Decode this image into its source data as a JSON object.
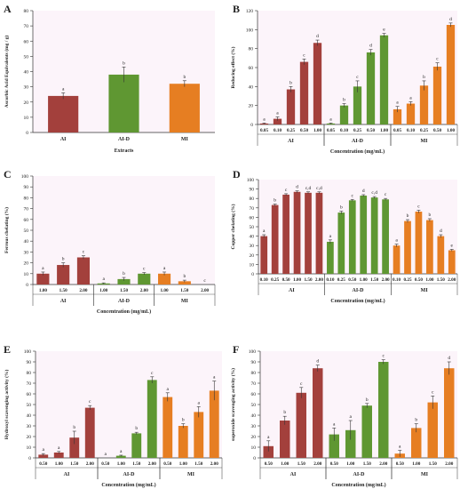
{
  "colors": {
    "AI": "#a3403c",
    "AI-D": "#5f9732",
    "MI": "#e67e22",
    "background_tint": "#f6dff0",
    "axis": "#333333"
  },
  "chart_data": [
    {
      "panel": "A",
      "type": "bar",
      "ylabel": "Ascorbic Acid Equivalents (mg / g)",
      "xlabel": "Extracts",
      "ylim": [
        0,
        80
      ],
      "yticks": [
        0,
        10,
        20,
        30,
        40,
        50,
        60,
        70,
        80
      ],
      "groups": [
        {
          "name": "AI",
          "bars": [
            {
              "x": "AI",
              "y": 24,
              "err": 2,
              "letter": "a"
            }
          ]
        },
        {
          "name": "AI-D",
          "bars": [
            {
              "x": "AI-D",
              "y": 38,
              "err": 5,
              "letter": "b"
            }
          ]
        },
        {
          "name": "MI",
          "bars": [
            {
              "x": "MI",
              "y": 32,
              "err": 2,
              "letter": "b"
            }
          ]
        }
      ]
    },
    {
      "panel": "B",
      "type": "bar",
      "ylabel": "Reducing effect (%)",
      "xlabel": "Concentration (mg/mL)",
      "ylim": [
        0,
        120
      ],
      "yticks": [
        0,
        20,
        40,
        60,
        80,
        100,
        120
      ],
      "groups": [
        {
          "name": "AI",
          "bars": [
            {
              "x": "0.05",
              "y": 1,
              "err": 0.5,
              "letter": "a"
            },
            {
              "x": "0.10",
              "y": 6,
              "err": 2,
              "letter": "a"
            },
            {
              "x": "0.25",
              "y": 37,
              "err": 3,
              "letter": "b"
            },
            {
              "x": "0.50",
              "y": 66,
              "err": 3,
              "letter": "c"
            },
            {
              "x": "1.00",
              "y": 86,
              "err": 3,
              "letter": "d"
            }
          ]
        },
        {
          "name": "AI-D",
          "bars": [
            {
              "x": "0.05",
              "y": 1,
              "err": 0.5,
              "letter": "a"
            },
            {
              "x": "0.10",
              "y": 20,
              "err": 2,
              "letter": "b"
            },
            {
              "x": "0.25",
              "y": 40,
              "err": 6,
              "letter": "c"
            },
            {
              "x": "0.50",
              "y": 76,
              "err": 3,
              "letter": "d"
            },
            {
              "x": "1.00",
              "y": 94,
              "err": 2,
              "letter": "e"
            }
          ]
        },
        {
          "name": "MI",
          "bars": [
            {
              "x": "0.05",
              "y": 16,
              "err": 3,
              "letter": "a"
            },
            {
              "x": "0.10",
              "y": 22,
              "err": 2,
              "letter": "a"
            },
            {
              "x": "0.25",
              "y": 41,
              "err": 5,
              "letter": "b"
            },
            {
              "x": "0.50",
              "y": 61,
              "err": 4,
              "letter": "c"
            },
            {
              "x": "1.00",
              "y": 105,
              "err": 2,
              "letter": "d"
            }
          ]
        }
      ]
    },
    {
      "panel": "C",
      "type": "bar",
      "ylabel": "Ferrous chelating (%)",
      "xlabel": "Concentration (mg/mL)",
      "ylim": [
        0,
        100
      ],
      "yticks": [
        0,
        10,
        20,
        30,
        40,
        50,
        60,
        70,
        80,
        90,
        100
      ],
      "groups": [
        {
          "name": "AI",
          "bars": [
            {
              "x": "1.00",
              "y": 10,
              "err": 1.5,
              "letter": "a"
            },
            {
              "x": "1.50",
              "y": 18,
              "err": 2,
              "letter": "b"
            },
            {
              "x": "2.00",
              "y": 25,
              "err": 1.5,
              "letter": "c"
            }
          ]
        },
        {
          "name": "AI-D",
          "bars": [
            {
              "x": "1.00",
              "y": 1,
              "err": 0.5,
              "letter": "a"
            },
            {
              "x": "1.50",
              "y": 5,
              "err": 1.5,
              "letter": "b"
            },
            {
              "x": "2.00",
              "y": 10,
              "err": 1,
              "letter": "c"
            }
          ]
        },
        {
          "name": "MI",
          "bars": [
            {
              "x": "1.00",
              "y": 10,
              "err": 1.5,
              "letter": "a"
            },
            {
              "x": "1.50",
              "y": 3,
              "err": 1,
              "letter": "b"
            },
            {
              "x": "2.00",
              "y": 0,
              "err": 0,
              "letter": "c"
            }
          ]
        }
      ]
    },
    {
      "panel": "D",
      "type": "bar",
      "ylabel": "Copper chelating (%)",
      "xlabel": "Concentration (mg/mL)",
      "ylim": [
        0,
        100
      ],
      "yticks": [
        0,
        10,
        20,
        30,
        40,
        50,
        60,
        70,
        80,
        90,
        100
      ],
      "groups": [
        {
          "name": "AI",
          "bars": [
            {
              "x": "0.10",
              "y": 40,
              "err": 1.5,
              "letter": "a"
            },
            {
              "x": "0.25",
              "y": 73,
              "err": 1,
              "letter": "b"
            },
            {
              "x": "0.50",
              "y": 84,
              "err": 1,
              "letter": "c"
            },
            {
              "x": "1.00",
              "y": 87,
              "err": 1,
              "letter": "d"
            },
            {
              "x": "1.50",
              "y": 86,
              "err": 1,
              "letter": "c,d"
            },
            {
              "x": "2.00",
              "y": 86,
              "err": 1,
              "letter": "c,d"
            }
          ]
        },
        {
          "name": "AI-D",
          "bars": [
            {
              "x": "0.10",
              "y": 34,
              "err": 2,
              "letter": "a"
            },
            {
              "x": "0.25",
              "y": 65,
              "err": 1.5,
              "letter": "b"
            },
            {
              "x": "0.50",
              "y": 78,
              "err": 1,
              "letter": "c"
            },
            {
              "x": "1.00",
              "y": 83,
              "err": 1,
              "letter": "d"
            },
            {
              "x": "1.50",
              "y": 81,
              "err": 1,
              "letter": "c,d"
            },
            {
              "x": "2.00",
              "y": 79,
              "err": 1,
              "letter": "c"
            }
          ]
        },
        {
          "name": "MI",
          "bars": [
            {
              "x": "0.10",
              "y": 30,
              "err": 1.5,
              "letter": "a"
            },
            {
              "x": "0.25",
              "y": 56,
              "err": 1.5,
              "letter": "b"
            },
            {
              "x": "0.50",
              "y": 66,
              "err": 1.5,
              "letter": "c"
            },
            {
              "x": "1.00",
              "y": 57,
              "err": 1.5,
              "letter": "b"
            },
            {
              "x": "1.50",
              "y": 40,
              "err": 1.5,
              "letter": "d"
            },
            {
              "x": "2.00",
              "y": 25,
              "err": 1,
              "letter": "e"
            }
          ]
        }
      ]
    },
    {
      "panel": "E",
      "type": "bar",
      "ylabel": "Hydroxyl scavenging activity (%)",
      "xlabel": "Concentration (mg/mL)",
      "ylim": [
        0,
        100
      ],
      "yticks": [
        0,
        10,
        20,
        30,
        40,
        50,
        60,
        70,
        80,
        90,
        100
      ],
      "groups": [
        {
          "name": "AI",
          "bars": [
            {
              "x": "0.50",
              "y": 3,
              "err": 1,
              "letter": "a"
            },
            {
              "x": "1.00",
              "y": 5,
              "err": 1,
              "letter": "a"
            },
            {
              "x": "1.50",
              "y": 19,
              "err": 6,
              "letter": "b"
            },
            {
              "x": "2.00",
              "y": 47,
              "err": 2,
              "letter": "c"
            }
          ]
        },
        {
          "name": "AI-D",
          "bars": [
            {
              "x": "0.50",
              "y": 0,
              "err": 0,
              "letter": "a"
            },
            {
              "x": "1.00",
              "y": 2,
              "err": 0.5,
              "letter": "a"
            },
            {
              "x": "1.50",
              "y": 23,
              "err": 1,
              "letter": "b"
            },
            {
              "x": "2.00",
              "y": 73,
              "err": 3,
              "letter": "c"
            }
          ]
        },
        {
          "name": "MI",
          "bars": [
            {
              "x": "0.50",
              "y": 57,
              "err": 4,
              "letter": "a"
            },
            {
              "x": "1.00",
              "y": 30,
              "err": 2,
              "letter": "b"
            },
            {
              "x": "1.50",
              "y": 43,
              "err": 5,
              "letter": "a"
            },
            {
              "x": "2.00",
              "y": 63,
              "err": 9,
              "letter": "a"
            }
          ]
        }
      ]
    },
    {
      "panel": "F",
      "type": "bar",
      "ylabel": "superoxide scavenging activity (%)",
      "xlabel": "Concentration (mg/mL)",
      "ylim": [
        0,
        100
      ],
      "yticks": [
        0,
        10,
        20,
        30,
        40,
        50,
        60,
        70,
        80,
        90,
        100
      ],
      "groups": [
        {
          "name": "AI",
          "bars": [
            {
              "x": "0.50",
              "y": 11,
              "err": 5,
              "letter": "a"
            },
            {
              "x": "1.00",
              "y": 35,
              "err": 4,
              "letter": "b"
            },
            {
              "x": "1.50",
              "y": 61,
              "err": 5,
              "letter": "c"
            },
            {
              "x": "2.00",
              "y": 84,
              "err": 3,
              "letter": "d"
            }
          ]
        },
        {
          "name": "AI-D",
          "bars": [
            {
              "x": "0.50",
              "y": 22,
              "err": 6,
              "letter": "a"
            },
            {
              "x": "1.00",
              "y": 26,
              "err": 9,
              "letter": "a"
            },
            {
              "x": "1.50",
              "y": 49,
              "err": 2,
              "letter": "b"
            },
            {
              "x": "2.00",
              "y": 90,
              "err": 2,
              "letter": "c"
            }
          ]
        },
        {
          "name": "MI",
          "bars": [
            {
              "x": "0.50",
              "y": 4,
              "err": 3,
              "letter": "a"
            },
            {
              "x": "1.00",
              "y": 28,
              "err": 4,
              "letter": "b"
            },
            {
              "x": "1.50",
              "y": 52,
              "err": 6,
              "letter": "c"
            },
            {
              "x": "2.00",
              "y": 84,
              "err": 6,
              "letter": "d"
            }
          ]
        }
      ]
    }
  ]
}
